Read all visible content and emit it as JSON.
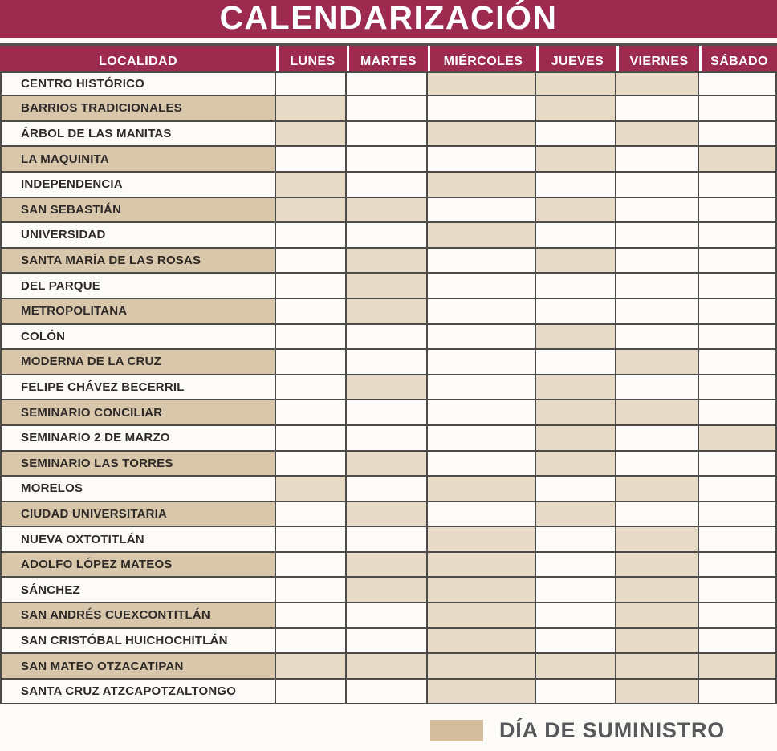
{
  "title": "CALENDARIZACIÓN",
  "table": {
    "locality_header": "LOCALIDAD",
    "day_headers": [
      "LUNES",
      "MARTES",
      "MIÉRCOLES",
      "JUEVES",
      "VIERNES",
      "SÁBADO"
    ],
    "rows": [
      {
        "locality": "CENTRO HISTÓRICO",
        "supply_days": [
          false,
          false,
          true,
          true,
          true,
          false
        ]
      },
      {
        "locality": "BARRIOS TRADICIONALES",
        "supply_days": [
          true,
          false,
          false,
          true,
          false,
          false
        ]
      },
      {
        "locality": "ÁRBOL DE LAS MANITAS",
        "supply_days": [
          true,
          false,
          true,
          false,
          true,
          false
        ]
      },
      {
        "locality": "LA MAQUINITA",
        "supply_days": [
          false,
          false,
          false,
          true,
          false,
          true
        ]
      },
      {
        "locality": "INDEPENDENCIA",
        "supply_days": [
          true,
          false,
          true,
          false,
          false,
          false
        ]
      },
      {
        "locality": "SAN SEBASTIÁN",
        "supply_days": [
          true,
          true,
          false,
          true,
          false,
          false
        ]
      },
      {
        "locality": "UNIVERSIDAD",
        "supply_days": [
          false,
          false,
          true,
          false,
          false,
          false
        ]
      },
      {
        "locality": "SANTA MARÍA DE LAS ROSAS",
        "supply_days": [
          false,
          true,
          false,
          true,
          false,
          false
        ]
      },
      {
        "locality": "DEL PARQUE",
        "supply_days": [
          false,
          true,
          false,
          false,
          false,
          false
        ]
      },
      {
        "locality": "METROPOLITANA",
        "supply_days": [
          false,
          true,
          false,
          false,
          false,
          false
        ]
      },
      {
        "locality": "COLÓN",
        "supply_days": [
          false,
          false,
          false,
          true,
          false,
          false
        ]
      },
      {
        "locality": "MODERNA DE LA CRUZ",
        "supply_days": [
          false,
          false,
          false,
          false,
          true,
          false
        ]
      },
      {
        "locality": "FELIPE CHÁVEZ BECERRIL",
        "supply_days": [
          false,
          true,
          false,
          true,
          false,
          false
        ]
      },
      {
        "locality": "SEMINARIO CONCILIAR",
        "supply_days": [
          false,
          false,
          false,
          true,
          true,
          false
        ]
      },
      {
        "locality": "SEMINARIO 2 DE MARZO",
        "supply_days": [
          false,
          false,
          false,
          true,
          false,
          true
        ]
      },
      {
        "locality": "SEMINARIO LAS TORRES",
        "supply_days": [
          false,
          true,
          false,
          true,
          false,
          false
        ]
      },
      {
        "locality": "MORELOS",
        "supply_days": [
          true,
          false,
          true,
          false,
          true,
          false
        ]
      },
      {
        "locality": "CIUDAD UNIVERSITARIA",
        "supply_days": [
          false,
          true,
          false,
          true,
          false,
          false
        ]
      },
      {
        "locality": "NUEVA OXTOTITLÁN",
        "supply_days": [
          false,
          false,
          true,
          false,
          true,
          false
        ]
      },
      {
        "locality": "ADOLFO LÓPEZ MATEOS",
        "supply_days": [
          false,
          true,
          true,
          false,
          true,
          false
        ]
      },
      {
        "locality": "SÁNCHEZ",
        "supply_days": [
          false,
          true,
          true,
          false,
          true,
          false
        ]
      },
      {
        "locality": "SAN ANDRÉS CUEXCONTITLÁN",
        "supply_days": [
          false,
          false,
          true,
          false,
          true,
          false
        ]
      },
      {
        "locality": "SAN CRISTÓBAL HUICHOCHITLÁN",
        "supply_days": [
          false,
          false,
          true,
          false,
          true,
          false
        ]
      },
      {
        "locality": "SAN MATEO OTZACATIPAN",
        "supply_days": [
          true,
          true,
          true,
          true,
          true,
          true
        ]
      },
      {
        "locality": "SANTA CRUZ ATZCAPOTZALTONGO",
        "supply_days": [
          false,
          false,
          true,
          false,
          true,
          false
        ]
      }
    ]
  },
  "legend": {
    "label": "DÍA DE SUMINISTRO",
    "swatch_color": "#d4bd9c"
  },
  "colors": {
    "banner": "#9d2b50",
    "supply_cell": "#e7dbc8",
    "locality_alt_row": "#d9c7ac",
    "grid_line": "#4d4b49",
    "legend_text": "#57585a"
  }
}
